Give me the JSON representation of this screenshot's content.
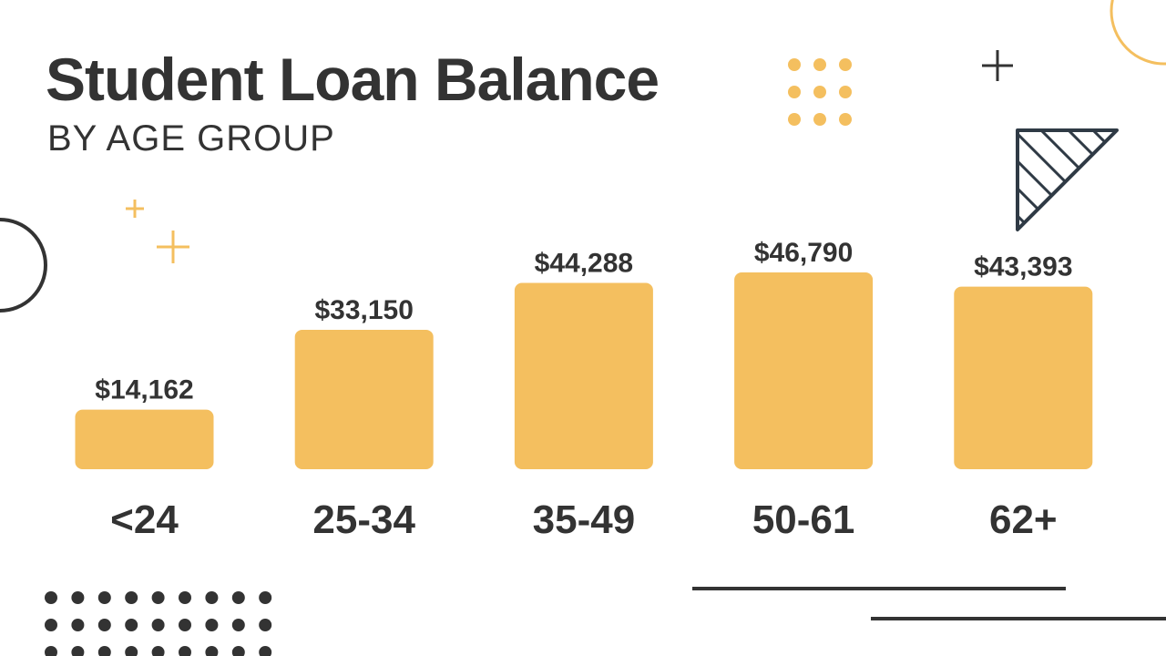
{
  "title": "Student Loan Balance",
  "subtitle": "BY AGE GROUP",
  "colors": {
    "bar": "#F4BF5F",
    "text": "#333333",
    "accent": "#F4BF5F",
    "dark_decor": "#333333"
  },
  "chart_data": {
    "type": "bar",
    "categories": [
      "<24",
      "25-34",
      "35-49",
      "50-61",
      "62+"
    ],
    "values": [
      14162,
      33150,
      44288,
      46790,
      43393
    ],
    "value_labels": [
      "$14,162",
      "$33,150",
      "$44,288",
      "$46,790",
      "$43,393"
    ],
    "title": "Student Loan Balance",
    "subtitle": "BY AGE GROUP",
    "xlabel": "",
    "ylabel": "",
    "grid": false,
    "legend": "none"
  }
}
